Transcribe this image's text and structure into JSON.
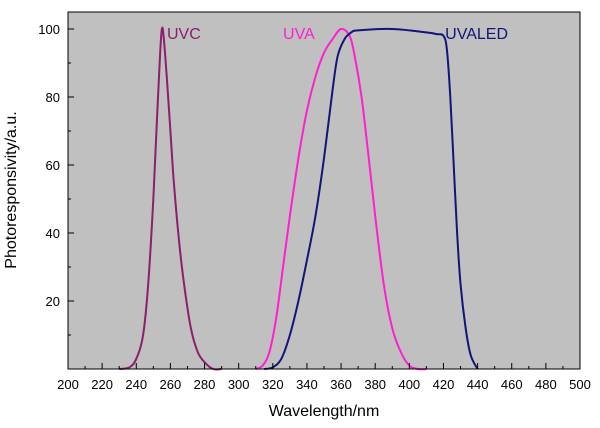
{
  "chart_data": {
    "type": "line",
    "xlabel": "Wavelength/nm",
    "ylabel": "Photoresponsivity/a.u.",
    "xlim": [
      200,
      500
    ],
    "ylim": [
      0,
      105
    ],
    "x_ticks": [
      200,
      220,
      240,
      260,
      280,
      300,
      320,
      340,
      360,
      380,
      400,
      420,
      440,
      460,
      480,
      500
    ],
    "y_ticks": [
      20,
      40,
      60,
      80,
      100
    ],
    "grid": false,
    "plot_background": "#c0c0c0",
    "series": [
      {
        "name": "UVC",
        "color": "#8b1e6e",
        "label_at": [
          258,
          97
        ],
        "points": [
          [
            230,
            0
          ],
          [
            236,
            0.5
          ],
          [
            240,
            3
          ],
          [
            244,
            10
          ],
          [
            247,
            25
          ],
          [
            250,
            50
          ],
          [
            252,
            72
          ],
          [
            254,
            93
          ],
          [
            255,
            100
          ],
          [
            256,
            98
          ],
          [
            258,
            85
          ],
          [
            260,
            70
          ],
          [
            262,
            55
          ],
          [
            265,
            38
          ],
          [
            268,
            25
          ],
          [
            272,
            12
          ],
          [
            276,
            5
          ],
          [
            280,
            2
          ],
          [
            285,
            0
          ],
          [
            290,
            0
          ]
        ]
      },
      {
        "name": "UVA",
        "color": "#ff1fd1",
        "label_at": [
          326,
          97
        ],
        "points": [
          [
            310,
            0
          ],
          [
            314,
            1
          ],
          [
            318,
            5
          ],
          [
            322,
            15
          ],
          [
            326,
            30
          ],
          [
            330,
            45
          ],
          [
            335,
            62
          ],
          [
            340,
            76
          ],
          [
            345,
            86
          ],
          [
            350,
            93
          ],
          [
            355,
            97
          ],
          [
            360,
            100
          ],
          [
            365,
            98
          ],
          [
            368,
            92
          ],
          [
            372,
            80
          ],
          [
            376,
            63
          ],
          [
            380,
            45
          ],
          [
            385,
            25
          ],
          [
            390,
            12
          ],
          [
            395,
            5
          ],
          [
            400,
            1
          ],
          [
            405,
            0
          ],
          [
            410,
            0
          ]
        ]
      },
      {
        "name": "UVALED",
        "color": "#13137a",
        "label_at": [
          421,
          97
        ],
        "points": [
          [
            315,
            0
          ],
          [
            320,
            0.5
          ],
          [
            325,
            3
          ],
          [
            330,
            10
          ],
          [
            335,
            20
          ],
          [
            340,
            32
          ],
          [
            345,
            45
          ],
          [
            350,
            62
          ],
          [
            355,
            82
          ],
          [
            358,
            92
          ],
          [
            362,
            97
          ],
          [
            366,
            99
          ],
          [
            370,
            99.6
          ],
          [
            390,
            100
          ],
          [
            410,
            99
          ],
          [
            416,
            98.5
          ],
          [
            420,
            98
          ],
          [
            422,
            94
          ],
          [
            424,
            80
          ],
          [
            426,
            60
          ],
          [
            428,
            40
          ],
          [
            430,
            25
          ],
          [
            433,
            12
          ],
          [
            436,
            4
          ],
          [
            440,
            0
          ]
        ]
      }
    ]
  }
}
